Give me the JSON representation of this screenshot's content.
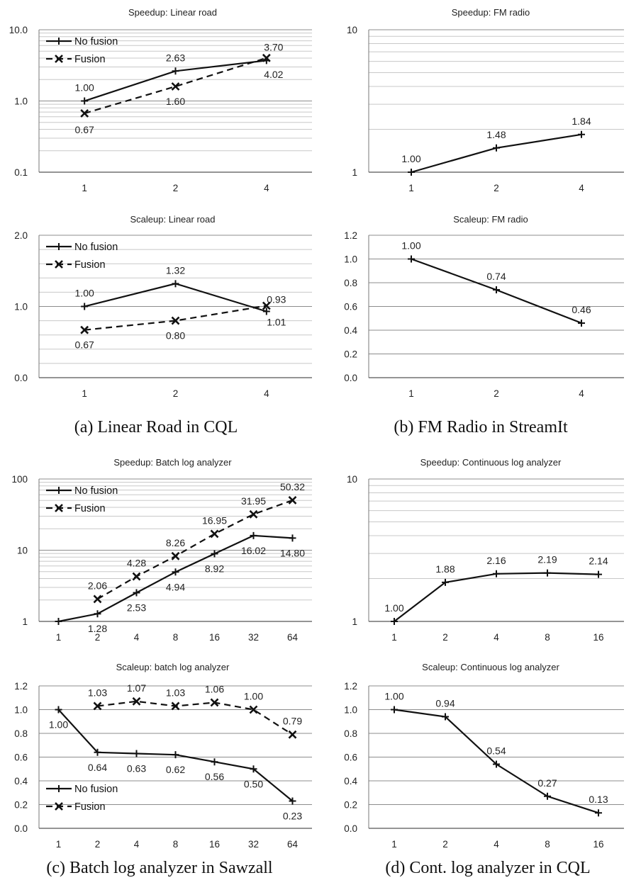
{
  "captions": [
    "(a) Linear Road in CQL",
    "(b) FM Radio in StreamIt",
    "(c) Batch log analyzer in Sawzall",
    "(d) Cont. log analyzer in CQL"
  ],
  "chart_data": [
    {
      "type": "line",
      "title": "Speedup: Linear road",
      "yscale": "log",
      "ylim": [
        0.1,
        10
      ],
      "ytick_labels": [
        "0.1",
        "1.0",
        "10.0"
      ],
      "categories": [
        "1",
        "2",
        "4"
      ],
      "legend": "top-left",
      "legend_entries": [
        "No fusion",
        "Fusion"
      ],
      "series": [
        {
          "name": "No fusion",
          "style": "solid",
          "marker": "plus",
          "values": [
            1.0,
            2.63,
            3.7
          ],
          "labels": [
            "1.00",
            "2.63",
            "3.70"
          ]
        },
        {
          "name": "Fusion",
          "style": "dashed",
          "marker": "x",
          "values": [
            0.67,
            1.6,
            4.02
          ],
          "labels": [
            "0.67",
            "1.60",
            "4.02"
          ]
        }
      ]
    },
    {
      "type": "line",
      "title": "Speedup: FM radio",
      "yscale": "log",
      "ylim": [
        1,
        10
      ],
      "ytick_labels": [
        "1",
        "10"
      ],
      "categories": [
        "1",
        "2",
        "4"
      ],
      "series": [
        {
          "style": "solid",
          "marker": "plus",
          "values": [
            1.0,
            1.48,
            1.84
          ],
          "labels": [
            "1.00",
            "1.48",
            "1.84"
          ]
        }
      ]
    },
    {
      "type": "line",
      "title": "Scaleup: Linear road",
      "yscale": "linear",
      "ylim": [
        0,
        2
      ],
      "ytick_labels": [
        "0.0",
        "1.0",
        "2.0"
      ],
      "categories": [
        "1",
        "2",
        "4"
      ],
      "legend": "top-left",
      "legend_entries": [
        "No fusion",
        "Fusion"
      ],
      "series": [
        {
          "name": "No fusion",
          "style": "solid",
          "marker": "plus",
          "values": [
            1.0,
            1.32,
            0.93
          ],
          "labels": [
            "1.00",
            "1.32",
            "0.93"
          ]
        },
        {
          "name": "Fusion",
          "style": "dashed",
          "marker": "x",
          "values": [
            0.67,
            0.8,
            1.01
          ],
          "labels": [
            "0.67",
            "0.80",
            "1.01"
          ]
        }
      ]
    },
    {
      "type": "line",
      "title": "Scaleup: FM radio",
      "yscale": "linear",
      "ylim": [
        0,
        1.2
      ],
      "ytick_labels": [
        "0.0",
        "0.2",
        "0.4",
        "0.6",
        "0.8",
        "1.0",
        "1.2"
      ],
      "categories": [
        "1",
        "2",
        "4"
      ],
      "series": [
        {
          "style": "solid",
          "marker": "plus",
          "values": [
            1.0,
            0.74,
            0.46
          ],
          "labels": [
            "1.00",
            "0.74",
            "0.46"
          ]
        }
      ]
    },
    {
      "type": "line",
      "title": "Speedup: Batch log analyzer",
      "yscale": "log",
      "ylim": [
        1,
        100
      ],
      "ytick_labels": [
        "1",
        "10",
        "100"
      ],
      "categories": [
        "1",
        "2",
        "4",
        "8",
        "16",
        "32",
        "64"
      ],
      "legend": "top-left",
      "legend_entries": [
        "No fusion",
        "Fusion"
      ],
      "series": [
        {
          "name": "No fusion",
          "style": "solid",
          "marker": "plus",
          "values": [
            1.0,
            1.28,
            2.53,
            4.94,
            8.92,
            16.02,
            14.8
          ],
          "labels": [
            "",
            "1.28",
            "2.53",
            "4.94",
            "8.92",
            "16.02",
            "14.80"
          ]
        },
        {
          "name": "Fusion",
          "style": "dashed",
          "marker": "x",
          "values": [
            null,
            2.06,
            4.28,
            8.26,
            16.95,
            31.95,
            50.32
          ],
          "labels": [
            "",
            "2.06",
            "4.28",
            "8.26",
            "16.95",
            "31.95",
            "50.32"
          ]
        }
      ]
    },
    {
      "type": "line",
      "title": "Speedup: Continuous log analyzer",
      "yscale": "log",
      "ylim": [
        1,
        10
      ],
      "ytick_labels": [
        "1",
        "10"
      ],
      "categories": [
        "1",
        "2",
        "4",
        "8",
        "16"
      ],
      "series": [
        {
          "style": "solid",
          "marker": "plus",
          "values": [
            1.0,
            1.88,
            2.16,
            2.19,
            2.14
          ],
          "labels": [
            "1.00",
            "1.88",
            "2.16",
            "2.19",
            "2.14"
          ]
        }
      ]
    },
    {
      "type": "line",
      "title": "Scaleup: batch log analyzer",
      "yscale": "linear",
      "ylim": [
        0,
        1.2
      ],
      "ytick_labels": [
        "0.0",
        "0.2",
        "0.4",
        "0.6",
        "0.8",
        "1.0",
        "1.2"
      ],
      "categories": [
        "1",
        "2",
        "4",
        "8",
        "16",
        "32",
        "64"
      ],
      "legend": "bottom-left",
      "legend_entries": [
        "No fusion",
        "Fusion"
      ],
      "series": [
        {
          "name": "No fusion",
          "style": "solid",
          "marker": "plus",
          "values": [
            1.0,
            0.64,
            0.63,
            0.62,
            0.56,
            0.5,
            0.23
          ],
          "labels": [
            "1.00",
            "0.64",
            "0.63",
            "0.62",
            "0.56",
            "0.50",
            "0.23"
          ]
        },
        {
          "name": "Fusion",
          "style": "dashed",
          "marker": "x",
          "values": [
            null,
            1.03,
            1.07,
            1.03,
            1.06,
            1.0,
            0.79
          ],
          "labels": [
            "",
            "1.03",
            "1.07",
            "1.03",
            "1.06",
            "1.00",
            "0.79"
          ]
        }
      ]
    },
    {
      "type": "line",
      "title": "Scaleup: Continuous log analyzer",
      "yscale": "linear",
      "ylim": [
        0,
        1.2
      ],
      "ytick_labels": [
        "0.0",
        "0.2",
        "0.4",
        "0.6",
        "0.8",
        "1.0",
        "1.2"
      ],
      "categories": [
        "1",
        "2",
        "4",
        "8",
        "16"
      ],
      "series": [
        {
          "style": "solid",
          "marker": "plus",
          "values": [
            1.0,
            0.94,
            0.54,
            0.27,
            0.13
          ],
          "labels": [
            "1.00",
            "0.94",
            "0.54",
            "0.27",
            "0.13"
          ]
        }
      ]
    }
  ]
}
